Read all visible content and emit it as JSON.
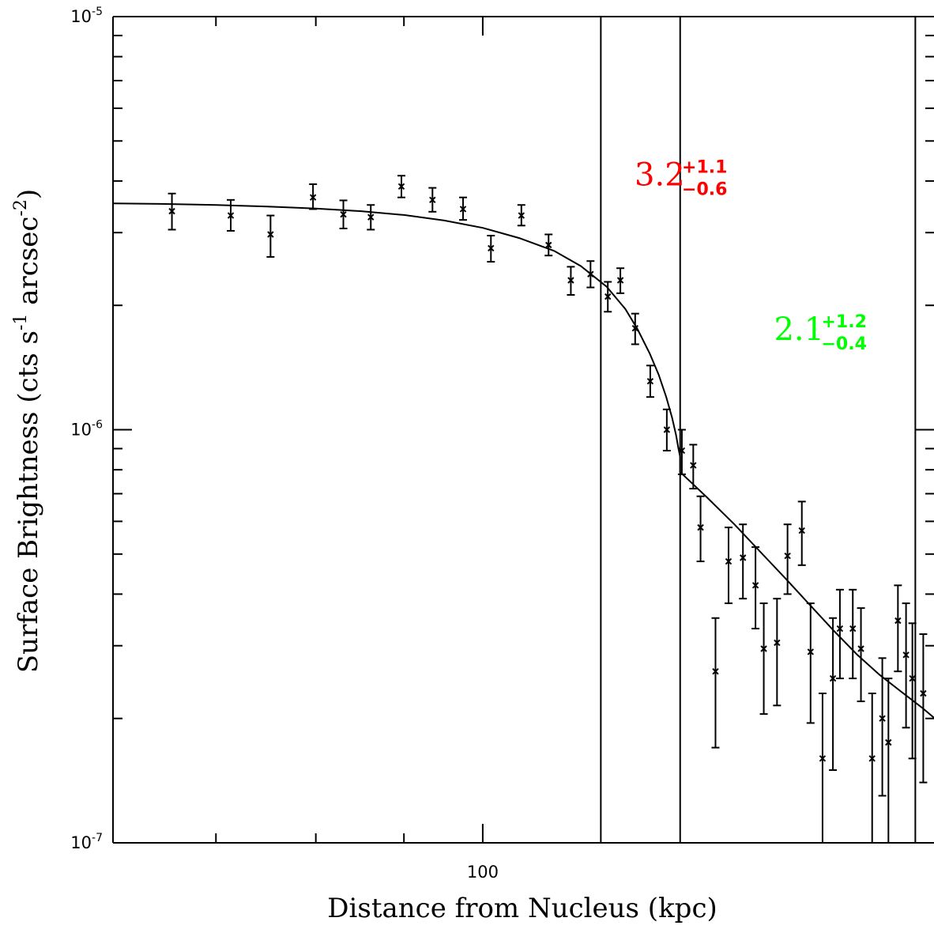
{
  "chart_data": {
    "type": "scatter",
    "xlabel": "Distance from Nucleus (kpc)",
    "ylabel": "Surface Brightness (cts s⁻¹ arcsec⁻²)",
    "ylabel_parts": {
      "prefix": "Surface Brightness (cts s",
      "exp1": "-1",
      "middle": " arcsec",
      "exp2": "-2",
      "suffix": ")"
    },
    "x_scale": "log",
    "y_scale": "log",
    "xlim": [
      61,
      183
    ],
    "ylim": [
      1e-07,
      1e-05
    ],
    "x_ticks": [
      {
        "value": 100,
        "label": "100"
      }
    ],
    "y_ticks": [
      {
        "value": 1e-07,
        "base": "10",
        "exp": "-7"
      },
      {
        "value": 1e-06,
        "base": "10",
        "exp": "-6"
      },
      {
        "value": 1e-05,
        "base": "10",
        "exp": "-5"
      }
    ],
    "grid": false,
    "series": [
      {
        "marker": "x",
        "x": [
          66.0,
          71.4,
          75.3,
          79.7,
          83.0,
          86.1,
          89.7,
          93.5,
          97.4,
          101.1,
          105.3,
          109.2,
          112.5,
          115.5,
          118.2,
          120.2,
          122.6,
          125.1,
          127.9,
          130.5,
          132.5,
          133.8,
          136.5,
          138.9,
          141.6,
          144.0,
          145.6,
          148.2,
          150.3,
          153.2,
          155.0,
          157.5,
          159.7,
          161.2,
          164.0,
          165.8,
          168.3,
          170.6,
          172.0,
          174.2,
          176.1,
          177.6,
          180.2
        ],
        "y": [
          3.38e-06,
          3.3e-06,
          2.97e-06,
          3.65e-06,
          3.32e-06,
          3.27e-06,
          3.88e-06,
          3.6e-06,
          3.42e-06,
          2.75e-06,
          3.3e-06,
          2.8e-06,
          2.3e-06,
          2.38e-06,
          2.1e-06,
          2.3e-06,
          1.76e-06,
          1.31e-06,
          1e-06,
          8.9e-07,
          8.2e-07,
          5.8e-07,
          2.6e-07,
          4.8e-07,
          4.9e-07,
          4.2e-07,
          2.95e-07,
          3.05e-07,
          4.95e-07,
          5.7e-07,
          2.9e-07,
          1.6e-07,
          2.5e-07,
          3.3e-07,
          3.3e-07,
          2.95e-07,
          1.6e-07,
          2e-07,
          1.75e-07,
          3.45e-07,
          2.85e-07,
          2.5e-07,
          2.3e-07
        ],
        "yerr_low": [
          3.05e-06,
          3.03e-06,
          2.62e-06,
          3.42e-06,
          3.07e-06,
          3.05e-06,
          3.65e-06,
          3.37e-06,
          3.22e-06,
          2.55e-06,
          3.12e-06,
          2.64e-06,
          2.12e-06,
          2.21e-06,
          1.93e-06,
          2.14e-06,
          1.61e-06,
          1.2e-06,
          8.9e-07,
          7.8e-07,
          7.2e-07,
          4.8e-07,
          1.7e-07,
          3.8e-07,
          3.9e-07,
          3.3e-07,
          2.05e-07,
          2.15e-07,
          4e-07,
          4.7e-07,
          1.95e-07,
          1e-07,
          1.5e-07,
          2.5e-07,
          2.5e-07,
          2.2e-07,
          1e-07,
          1.3e-07,
          1e-07,
          2.6e-07,
          1.9e-07,
          1.6e-07,
          1.4e-07
        ],
        "yerr_high": [
          3.73e-06,
          3.6e-06,
          3.3e-06,
          3.93e-06,
          3.59e-06,
          3.5e-06,
          4.12e-06,
          3.85e-06,
          3.65e-06,
          2.95e-06,
          3.5e-06,
          2.97e-06,
          2.48e-06,
          2.56e-06,
          2.28e-06,
          2.46e-06,
          1.91e-06,
          1.43e-06,
          1.12e-06,
          1e-06,
          9.2e-07,
          6.9e-07,
          3.5e-07,
          5.8e-07,
          5.9e-07,
          5.2e-07,
          3.8e-07,
          3.9e-07,
          5.9e-07,
          6.7e-07,
          3.8e-07,
          2.3e-07,
          3.5e-07,
          4.1e-07,
          4.1e-07,
          3.7e-07,
          2.3e-07,
          2.8e-07,
          2.5e-07,
          4.2e-07,
          3.8e-07,
          3.4e-07,
          3.2e-07
        ]
      }
    ],
    "model_curve": {
      "x": [
        61,
        65,
        70,
        75,
        80,
        85,
        90,
        95,
        100,
        105,
        110,
        114,
        118,
        121,
        123,
        125,
        126.5,
        127.8,
        128.8,
        129.5,
        129.9,
        130.2,
        130.2,
        135,
        140,
        145,
        150,
        155,
        160,
        165,
        170,
        175,
        180,
        183
      ],
      "y": [
        3.53e-06,
        3.52e-06,
        3.5e-06,
        3.47e-06,
        3.43e-06,
        3.38e-06,
        3.31e-06,
        3.21e-06,
        3.08e-06,
        2.91e-06,
        2.71e-06,
        2.49e-06,
        2.22e-06,
        1.96e-06,
        1.75e-06,
        1.53e-06,
        1.36e-06,
        1.2e-06,
        1.07e-06,
        9.7e-07,
        9e-07,
        8.6e-07,
        7.9e-07,
        6.85e-07,
        5.9e-07,
        5.05e-07,
        4.35e-07,
        3.75e-07,
        3.25e-07,
        2.85e-07,
        2.55e-07,
        2.32e-07,
        2.12e-07,
        2e-07
      ]
    },
    "vertical_lines": [
      117.1,
      130.2,
      178.3
    ],
    "annotations": [
      {
        "main": "3.2",
        "sup": "+1.1",
        "sub": "−0.6",
        "color": "#ff0000",
        "x": 122.5,
        "y": 3.9e-06
      },
      {
        "main": "2.1",
        "sup": "+1.2",
        "sub": "−0.4",
        "color": "#00ff00",
        "x": 147.6,
        "y": 1.65e-06
      }
    ]
  }
}
